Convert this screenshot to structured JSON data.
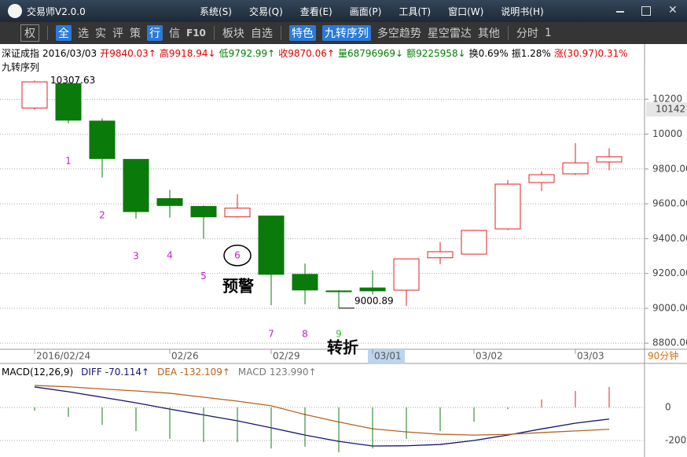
{
  "window": {
    "title": "交易师V2.0.0",
    "menu": [
      "系统(S)",
      "交易(Q)",
      "查看(E)",
      "画面(P)",
      "工具(T)",
      "窗口(W)",
      "说明书(H)"
    ]
  },
  "toolbar": {
    "left": [
      "权",
      "全",
      "选",
      "实",
      "评",
      "策",
      "行",
      "信",
      "F10"
    ],
    "middle": [
      "板块",
      "自选"
    ],
    "right": [
      "特色",
      "九转序列",
      "多空趋势",
      "星空雷达",
      "其他",
      "分时",
      "1"
    ]
  },
  "info": {
    "name": "深证成指",
    "date": "2016/03/03",
    "fields": [
      {
        "text": "开9840.03↑",
        "color": "#e00000"
      },
      {
        "text": "高9918.94↓",
        "color": "#e00000"
      },
      {
        "text": "低9792.99↑",
        "color": "#008000"
      },
      {
        "text": "收9870.06↑",
        "color": "#e00000"
      },
      {
        "text": "量68796969↓",
        "color": "#008000"
      },
      {
        "text": "额9225958↓",
        "color": "#008000"
      },
      {
        "text": "换0.69%",
        "color": "#000000"
      },
      {
        "text": "振1.28%",
        "color": "#000000"
      },
      {
        "text": "涨(30.97)0.31%",
        "color": "#e00000"
      }
    ]
  },
  "period": "90分钟",
  "annotations": {
    "warning": "预警",
    "turn": "转折"
  },
  "chart_data": [
    {
      "type": "candlestick",
      "title": "九转序列",
      "categories": [
        "2016/02/24",
        null,
        null,
        null,
        "02/26",
        null,
        null,
        "02/29",
        null,
        null,
        "03/01",
        null,
        null,
        "03/02",
        null,
        null,
        "03/03",
        null
      ],
      "open": [
        10150,
        10290,
        10075,
        9855,
        9630,
        9585,
        9525,
        9530,
        9195,
        9100,
        9117,
        9104,
        9290,
        9311,
        9456,
        9722,
        9772,
        9840.03
      ],
      "high": [
        10307.63,
        10300,
        10090,
        9855,
        9680,
        9590,
        9655,
        9530,
        9257,
        9105,
        9217,
        9284,
        9380,
        9450,
        9736,
        9786,
        9948,
        9918.94
      ],
      "low": [
        10140,
        10060,
        9750,
        9515,
        9520,
        9400,
        9520,
        9018,
        9023,
        9000.89,
        9080,
        9014,
        9253,
        9311,
        9450,
        9673,
        9765,
        9792.99
      ],
      "close": [
        10300,
        10080,
        9860,
        9555,
        9590,
        9525,
        9575,
        9195,
        9105,
        9095,
        9100,
        9284,
        9325,
        9447,
        9713,
        9767,
        9835,
        9870.06
      ],
      "td_counts": [
        null,
        1,
        2,
        3,
        4,
        5,
        6,
        7,
        8,
        9,
        null,
        null,
        null,
        null,
        null,
        null,
        null,
        null
      ],
      "td_color": "#c020c0",
      "td_final_color": "#30c030",
      "td_circled": 6,
      "up_color": "#e02020",
      "down_color": "#0a7a0a",
      "ylim": [
        8765,
        10490
      ],
      "yticks": [
        {
          "value": 8800,
          "label": "8800.00"
        },
        {
          "value": 9000,
          "label": "9000.00"
        },
        {
          "value": 9200,
          "label": "9200.00"
        },
        {
          "value": 9400,
          "label": "9400.00"
        },
        {
          "value": 9600,
          "label": "9600.00"
        },
        {
          "value": 9800,
          "label": "9800.00"
        },
        10000,
        10200
      ],
      "grid": true,
      "price_marker": 10142,
      "cursor_index": 10
    },
    {
      "type": "macd",
      "title": "MACD(12,26,9)",
      "ylim": [
        -295,
        257
      ],
      "yticks": [
        0,
        {
          "value": -200,
          "label": "-200.00"
        }
      ],
      "grid": true,
      "series": [
        {
          "name": "DIFF",
          "readout": "-70.114↑",
          "color": "#14146e",
          "kind": "line",
          "values": [
            124,
            95,
            62,
            28,
            -10,
            -45,
            -81,
            -123,
            -167,
            -205,
            -233,
            -232,
            -224,
            -200,
            -167,
            -130,
            -95,
            -70.114
          ]
        },
        {
          "name": "DEA",
          "readout": "-132.109↑",
          "color": "#b8621c",
          "kind": "line",
          "values": [
            133,
            125,
            112,
            100,
            86,
            62,
            38,
            10,
            -43,
            -88,
            -129,
            -148,
            -162,
            -167,
            -163,
            -152,
            -142,
            -132.109
          ]
        },
        {
          "name": "MACD",
          "readout": "123.990↑",
          "color": "#777777",
          "kind": "histogram",
          "up_color": "#e02020",
          "down_color": "#1a7a1a",
          "values": [
            -19,
            -57,
            -105,
            -143,
            -190,
            -210,
            -210,
            -248,
            -238,
            -271,
            -248,
            -190,
            -143,
            -86,
            -10,
            48,
            100,
            123.99
          ]
        }
      ]
    }
  ]
}
